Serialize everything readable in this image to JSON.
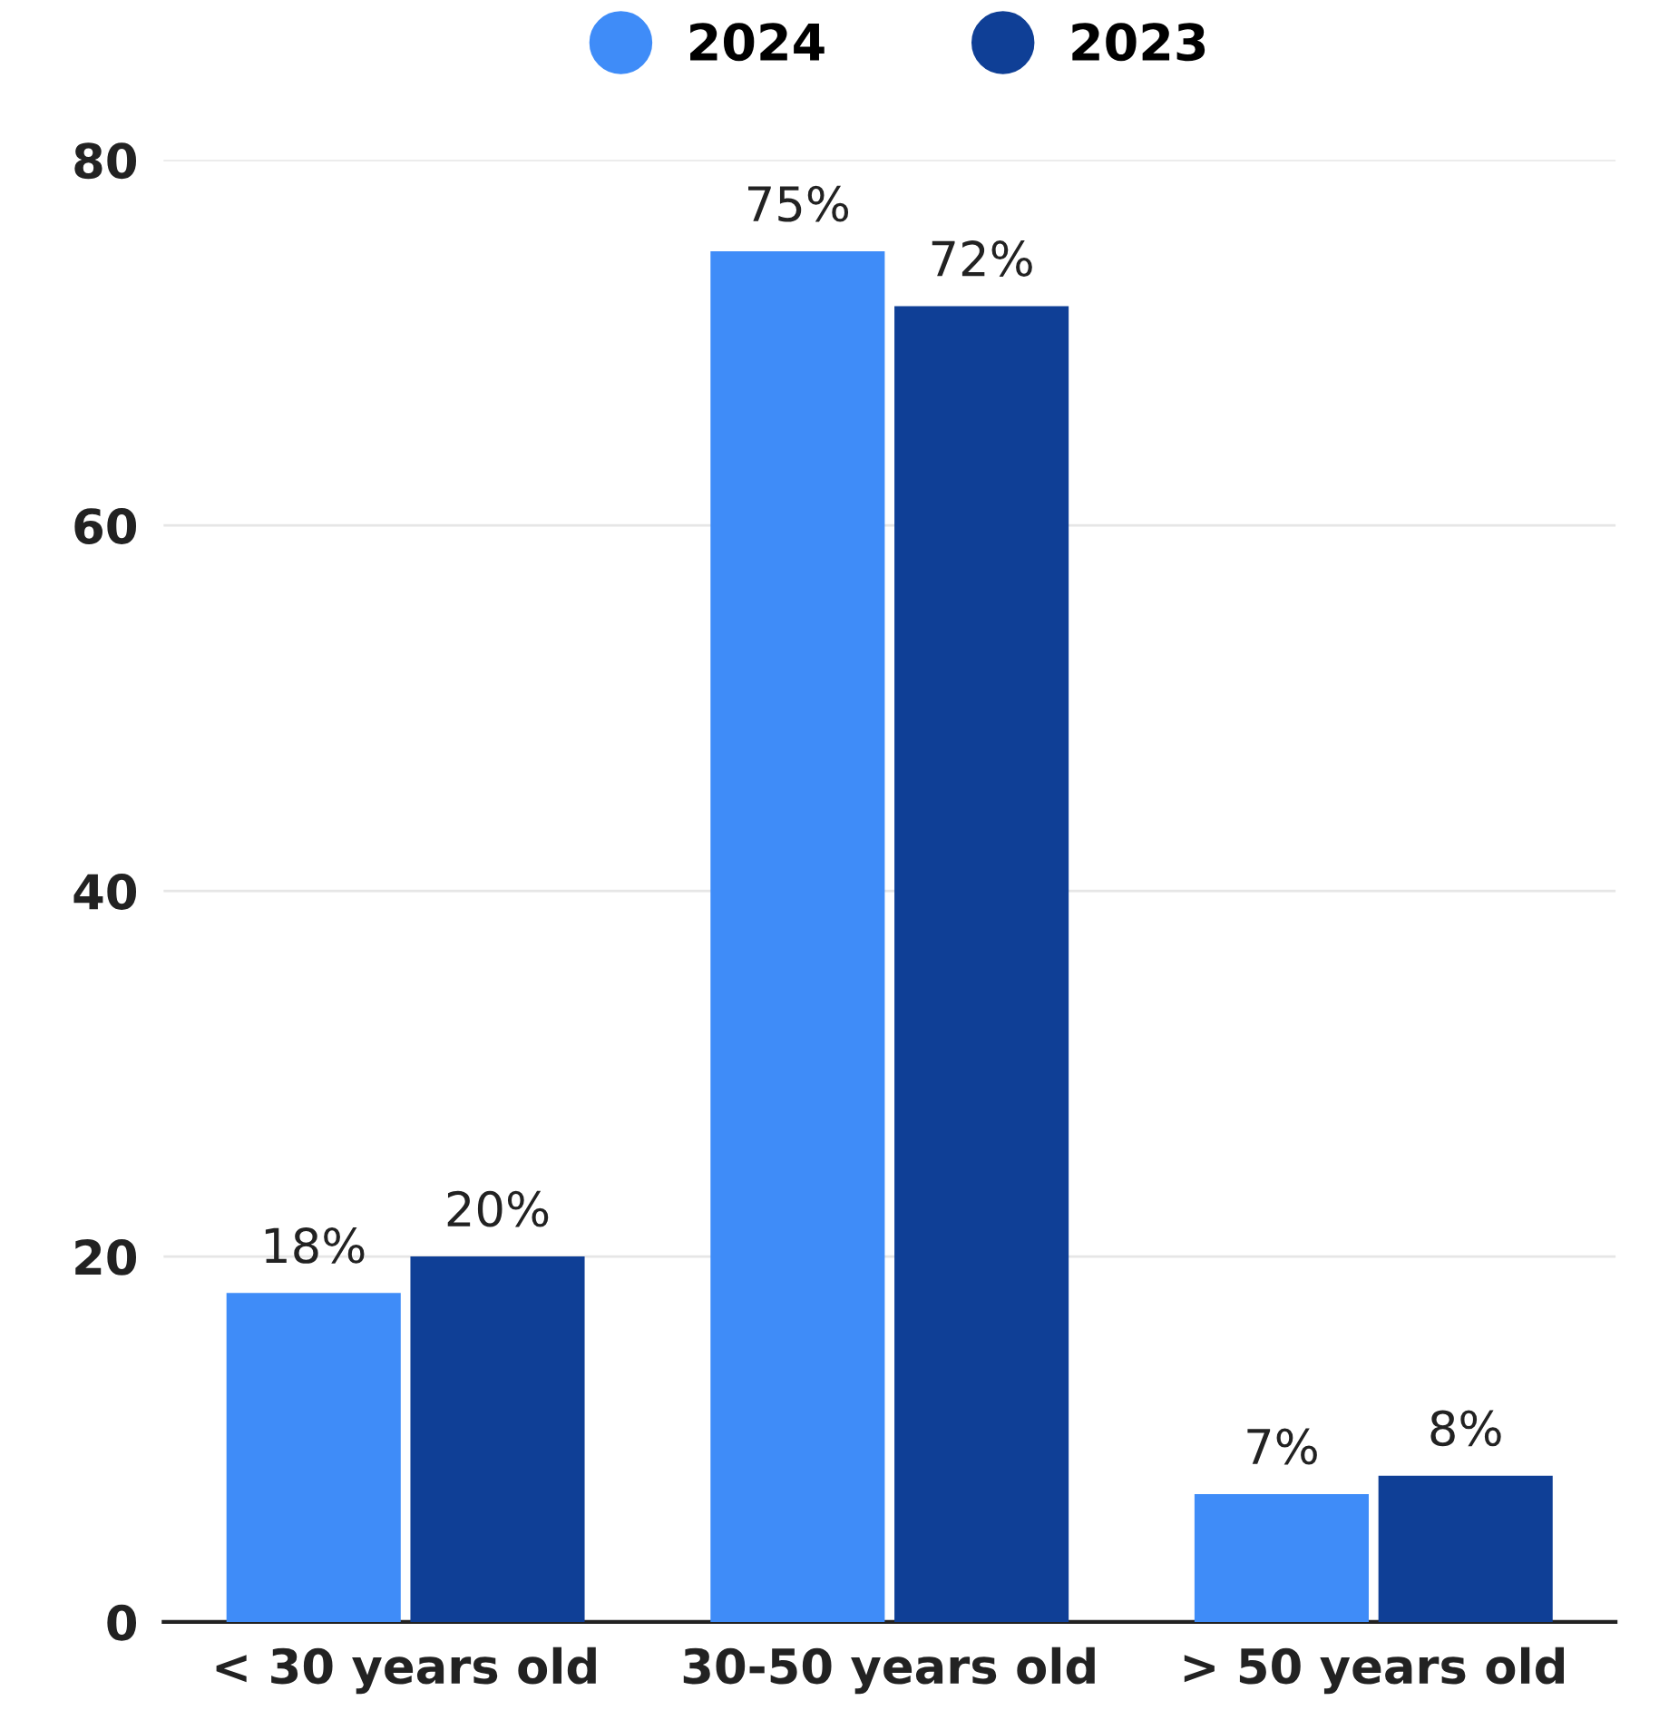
{
  "chart_data": {
    "type": "bar",
    "categories": [
      "< 30 years old",
      "30-50 years old",
      "> 50 years old"
    ],
    "series": [
      {
        "name": "2024",
        "color": "#3f8cf8",
        "values": [
          18,
          75,
          7
        ],
        "value_labels": [
          "18%",
          "75%",
          "7%"
        ]
      },
      {
        "name": "2023",
        "color": "#0f3f96",
        "values": [
          20,
          72,
          8
        ],
        "value_labels": [
          "20%",
          "72%",
          "8%"
        ]
      }
    ],
    "ylim": [
      0,
      80
    ],
    "yticks": [
      0,
      20,
      40,
      60,
      80
    ],
    "grid": "y",
    "legend": "top"
  }
}
